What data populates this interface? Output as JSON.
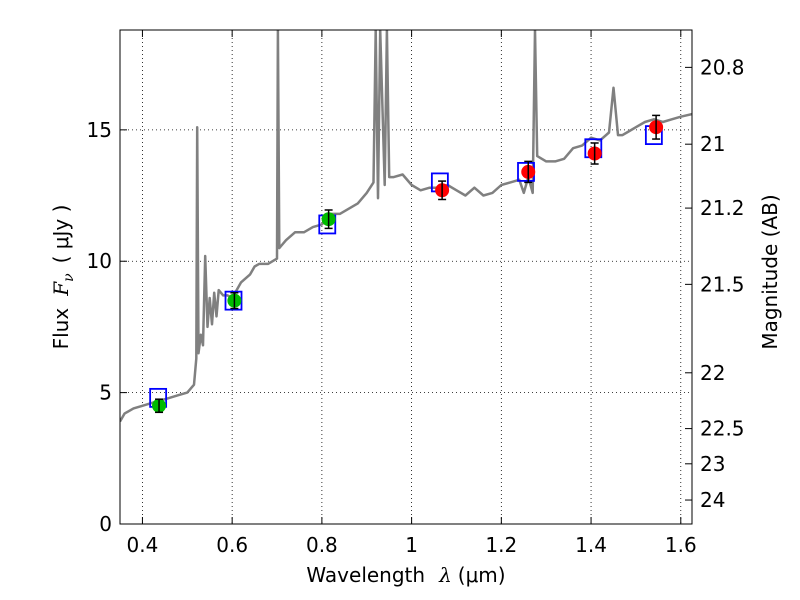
{
  "chart_data": {
    "type": "scatter",
    "title": "",
    "xlabel": "Wavelength",
    "xlabel_symbol": "λ",
    "xlabel_unit": "(μm)",
    "ylabel": "Flux",
    "ylabel_symbol": "F",
    "ylabel_symbol_sub": "ν",
    "ylabel_unit": "( μJy )",
    "y2label": "Magnitude (AB)",
    "xlim": [
      0.35,
      1.625
    ],
    "ylim": [
      0,
      18.8
    ],
    "grid": true,
    "x_ticks": [
      0.4,
      0.6,
      0.8,
      1,
      1.2,
      1.4,
      1.6
    ],
    "x_tick_labels": [
      "0.4",
      "0.6",
      "0.8",
      "1",
      "1.2",
      "1.4",
      "1.6"
    ],
    "y_ticks": [
      0,
      5,
      10,
      15
    ],
    "y_tick_labels": [
      "0",
      "5",
      "10",
      "15"
    ],
    "y2_ticks": [
      20.8,
      21,
      21.2,
      21.5,
      22,
      22.5,
      23,
      24
    ],
    "y2_tick_labels": [
      "20.8",
      "21",
      "21.2",
      "21.5",
      "22",
      "22.5",
      "23",
      "24"
    ],
    "colors": {
      "spectrum": "#808080",
      "model_box": "#0000ff",
      "photometry_optical": "#00bb00",
      "photometry_nir": "#ff0000",
      "errorbar": "#000000"
    },
    "series": [
      {
        "kind": "line",
        "color": "#808080",
        "x": [
          0.35,
          0.36,
          0.38,
          0.4,
          0.42,
          0.44,
          0.46,
          0.48,
          0.5,
          0.515,
          0.52,
          0.522,
          0.525,
          0.53,
          0.535,
          0.54,
          0.545,
          0.55,
          0.555,
          0.56,
          0.565,
          0.57,
          0.58,
          0.59,
          0.6,
          0.62,
          0.64,
          0.65,
          0.66,
          0.68,
          0.7,
          0.702,
          0.705,
          0.71,
          0.72,
          0.74,
          0.76,
          0.78,
          0.8,
          0.82,
          0.84,
          0.86,
          0.88,
          0.9,
          0.915,
          0.92,
          0.925,
          0.93,
          0.94,
          0.945,
          0.95,
          0.96,
          0.98,
          1.0,
          1.02,
          1.04,
          1.06,
          1.08,
          1.1,
          1.12,
          1.14,
          1.16,
          1.18,
          1.2,
          1.22,
          1.24,
          1.25,
          1.26,
          1.27,
          1.275,
          1.28,
          1.3,
          1.32,
          1.34,
          1.36,
          1.38,
          1.4,
          1.42,
          1.44,
          1.45,
          1.46,
          1.47,
          1.48,
          1.5,
          1.52,
          1.54,
          1.56,
          1.58,
          1.6,
          1.625
        ],
        "y": [
          3.9,
          4.2,
          4.4,
          4.5,
          4.6,
          4.7,
          4.8,
          4.9,
          5.0,
          5.3,
          6.3,
          15.1,
          6.5,
          7.2,
          6.8,
          10.2,
          7.5,
          8.6,
          7.6,
          8.8,
          7.9,
          8.9,
          8.7,
          8.7,
          8.6,
          9.2,
          9.5,
          9.8,
          9.9,
          9.9,
          10.1,
          18.8,
          10.5,
          10.6,
          10.8,
          11.1,
          11.1,
          11.3,
          11.4,
          11.8,
          11.8,
          12.0,
          12.2,
          12.6,
          13.0,
          18.8,
          12.4,
          18.8,
          12.9,
          18.8,
          13.2,
          13.2,
          13.3,
          12.9,
          12.7,
          12.8,
          12.8,
          12.9,
          12.7,
          12.5,
          12.8,
          12.5,
          12.6,
          12.9,
          13.0,
          13.1,
          12.6,
          13.2,
          12.6,
          18.8,
          14.0,
          13.8,
          13.8,
          13.9,
          14.3,
          14.4,
          14.7,
          14.6,
          14.9,
          16.6,
          14.8,
          14.8,
          14.9,
          15.1,
          15.3,
          15.4,
          15.3,
          15.4,
          15.5,
          15.6
        ]
      },
      {
        "kind": "boxes",
        "color": "#0000ff",
        "x": [
          0.435,
          0.603,
          0.812,
          1.063,
          1.255,
          1.405,
          1.54
        ],
        "y": [
          4.8,
          8.5,
          11.4,
          13.0,
          13.4,
          14.3,
          14.8
        ]
      },
      {
        "kind": "points",
        "color": "#00bb00",
        "x": [
          0.437,
          0.605,
          0.815
        ],
        "y": [
          4.5,
          8.5,
          11.6
        ],
        "yerr": [
          0.25,
          0.3,
          0.35
        ]
      },
      {
        "kind": "points",
        "color": "#ff0000",
        "x": [
          1.068,
          1.26,
          1.408,
          1.545
        ],
        "y": [
          12.7,
          13.4,
          14.1,
          15.1
        ],
        "yerr": [
          0.35,
          0.4,
          0.4,
          0.45
        ]
      }
    ]
  }
}
